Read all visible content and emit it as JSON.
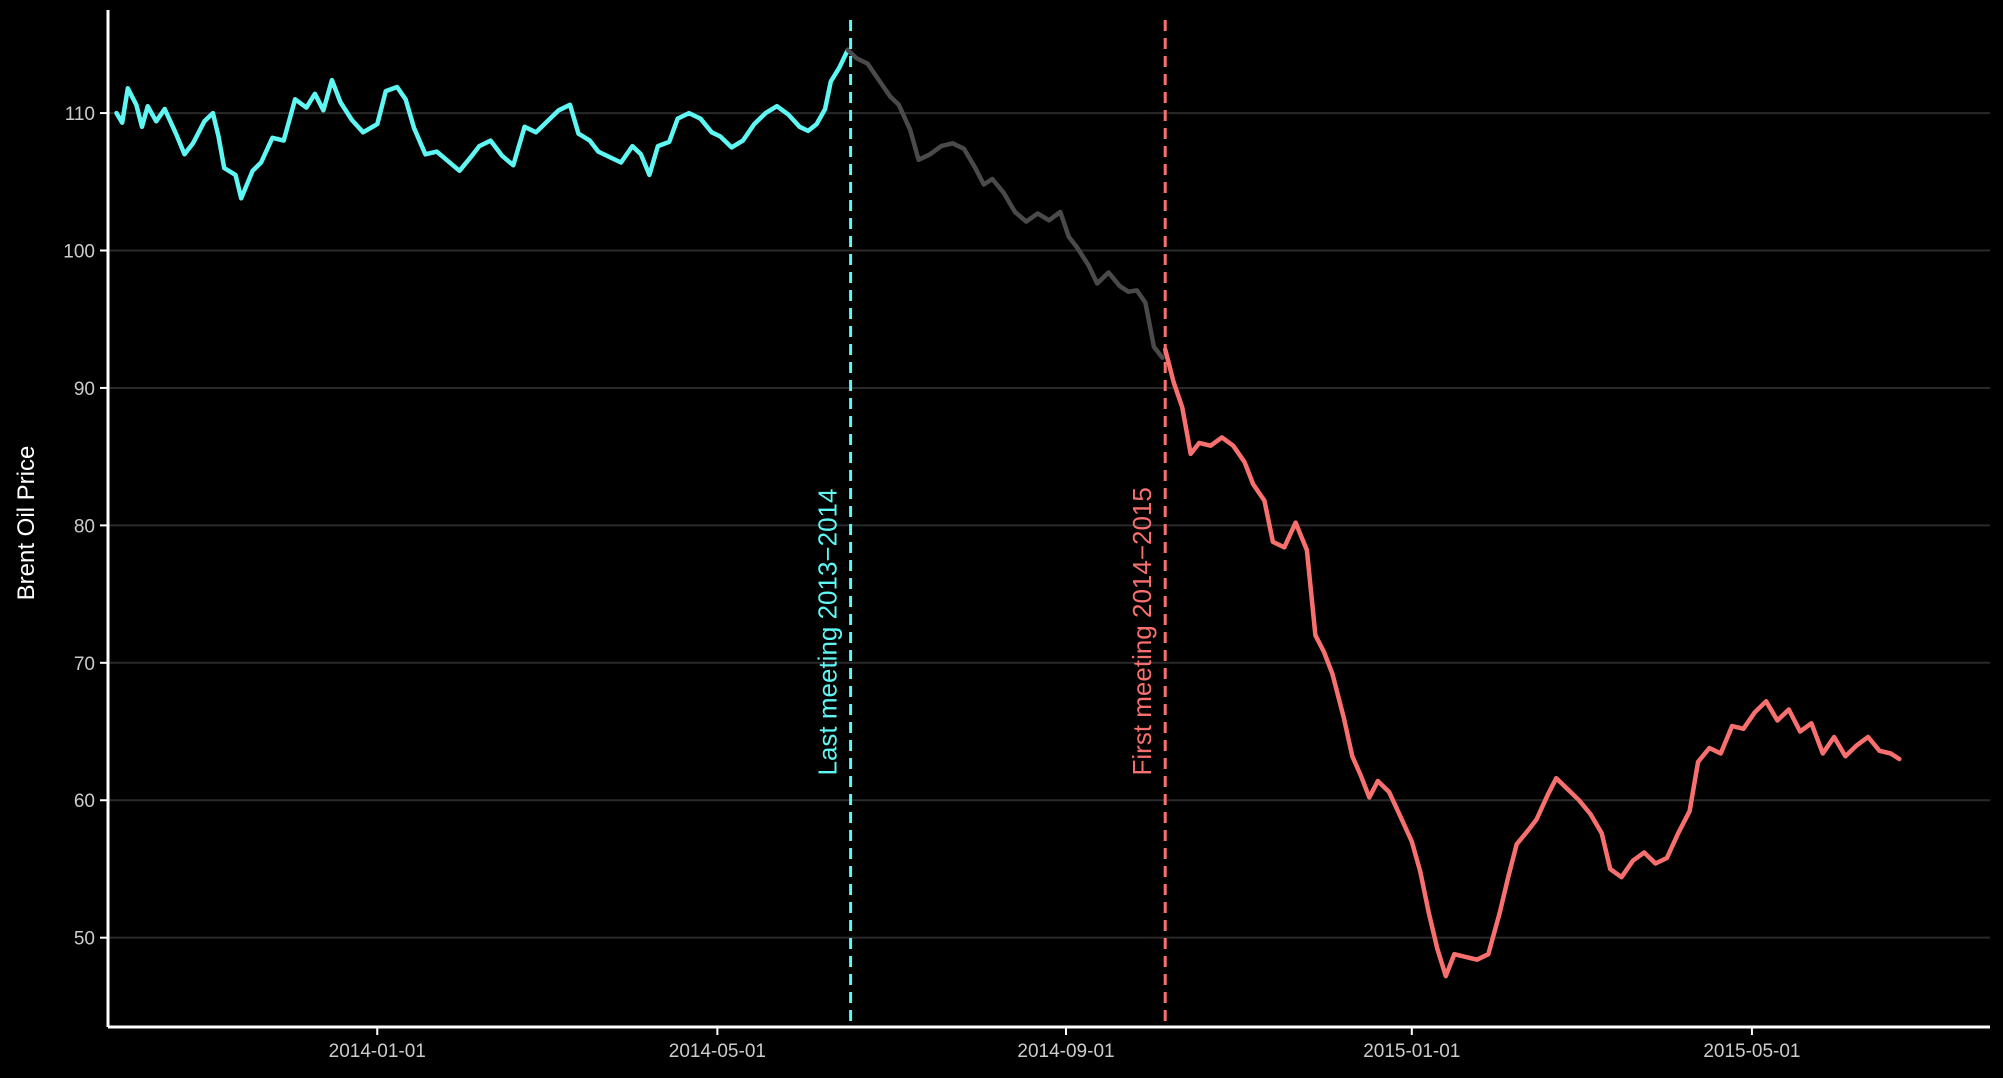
{
  "chart_data": {
    "type": "line",
    "title": "",
    "xlabel": "",
    "ylabel": "Brent Oil Price",
    "x_range": [
      "2013-09-28",
      "2015-07-24"
    ],
    "ylim": [
      43.5,
      117.5
    ],
    "grid": "horizontal",
    "legend": "none",
    "x_ticks": [
      "2014-01-01",
      "2014-05-01",
      "2014-09-01",
      "2015-01-01",
      "2015-05-01"
    ],
    "y_ticks": [
      50,
      60,
      70,
      80,
      90,
      100,
      110
    ],
    "x_tick_labels": [
      "2014-01-01",
      "2014-05-01",
      "2014-09-01",
      "2015-01-01",
      "2015-05-01"
    ],
    "y_tick_labels": [
      "50",
      "60",
      "70",
      "80",
      "90",
      "100",
      "110"
    ],
    "series": [
      {
        "color": "#5ef7f4",
        "points": [
          [
            "2013-10-01",
            110.0
          ],
          [
            "2013-10-03",
            109.3
          ],
          [
            "2013-10-05",
            111.8
          ],
          [
            "2013-10-08",
            110.6
          ],
          [
            "2013-10-10",
            109.0
          ],
          [
            "2013-10-12",
            110.5
          ],
          [
            "2013-10-15",
            109.4
          ],
          [
            "2013-10-18",
            110.3
          ],
          [
            "2013-10-22",
            108.5
          ],
          [
            "2013-10-25",
            107.0
          ],
          [
            "2013-10-28",
            107.8
          ],
          [
            "2013-11-01",
            109.4
          ],
          [
            "2013-11-04",
            110.0
          ],
          [
            "2013-11-06",
            108.3
          ],
          [
            "2013-11-08",
            106.0
          ],
          [
            "2013-11-12",
            105.5
          ],
          [
            "2013-11-14",
            103.8
          ],
          [
            "2013-11-18",
            105.8
          ],
          [
            "2013-11-21",
            106.4
          ],
          [
            "2013-11-25",
            108.2
          ],
          [
            "2013-11-29",
            108.0
          ],
          [
            "2013-12-03",
            111.0
          ],
          [
            "2013-12-07",
            110.4
          ],
          [
            "2013-12-10",
            111.4
          ],
          [
            "2013-12-13",
            110.2
          ],
          [
            "2013-12-16",
            112.4
          ],
          [
            "2013-12-19",
            110.8
          ],
          [
            "2013-12-23",
            109.5
          ],
          [
            "2013-12-27",
            108.6
          ],
          [
            "2014-01-01",
            109.2
          ],
          [
            "2014-01-04",
            111.6
          ],
          [
            "2014-01-08",
            111.9
          ],
          [
            "2014-01-11",
            111.0
          ],
          [
            "2014-01-14",
            108.9
          ],
          [
            "2014-01-18",
            107.0
          ],
          [
            "2014-01-22",
            107.2
          ],
          [
            "2014-01-26",
            106.5
          ],
          [
            "2014-01-30",
            105.8
          ],
          [
            "2014-02-03",
            106.8
          ],
          [
            "2014-02-06",
            107.6
          ],
          [
            "2014-02-10",
            108.0
          ],
          [
            "2014-02-14",
            106.9
          ],
          [
            "2014-02-18",
            106.2
          ],
          [
            "2014-02-22",
            109.0
          ],
          [
            "2014-02-26",
            108.6
          ],
          [
            "2014-03-02",
            109.4
          ],
          [
            "2014-03-06",
            110.2
          ],
          [
            "2014-03-10",
            110.6
          ],
          [
            "2014-03-13",
            108.5
          ],
          [
            "2014-03-17",
            108.0
          ],
          [
            "2014-03-20",
            107.2
          ],
          [
            "2014-03-24",
            106.8
          ],
          [
            "2014-03-28",
            106.4
          ],
          [
            "2014-04-01",
            107.6
          ],
          [
            "2014-04-04",
            107.0
          ],
          [
            "2014-04-07",
            105.5
          ],
          [
            "2014-04-10",
            107.6
          ],
          [
            "2014-04-14",
            107.9
          ],
          [
            "2014-04-17",
            109.6
          ],
          [
            "2014-04-21",
            110.0
          ],
          [
            "2014-04-25",
            109.6
          ],
          [
            "2014-04-29",
            108.6
          ],
          [
            "2014-05-02",
            108.3
          ],
          [
            "2014-05-06",
            107.5
          ],
          [
            "2014-05-10",
            108.0
          ],
          [
            "2014-05-14",
            109.2
          ],
          [
            "2014-05-18",
            110.0
          ],
          [
            "2014-05-22",
            110.5
          ],
          [
            "2014-05-26",
            109.9
          ],
          [
            "2014-05-30",
            109.0
          ],
          [
            "2014-06-02",
            108.7
          ],
          [
            "2014-06-05",
            109.2
          ],
          [
            "2014-06-08",
            110.3
          ],
          [
            "2014-06-10",
            112.3
          ],
          [
            "2014-06-13",
            113.3
          ],
          [
            "2014-06-16",
            114.6
          ]
        ]
      },
      {
        "color": "#4a4a4a",
        "points": [
          [
            "2014-06-16",
            114.6
          ],
          [
            "2014-06-19",
            114.0
          ],
          [
            "2014-06-23",
            113.6
          ],
          [
            "2014-06-27",
            112.4
          ],
          [
            "2014-07-01",
            111.2
          ],
          [
            "2014-07-04",
            110.6
          ],
          [
            "2014-07-08",
            108.8
          ],
          [
            "2014-07-11",
            106.6
          ],
          [
            "2014-07-15",
            107.0
          ],
          [
            "2014-07-19",
            107.6
          ],
          [
            "2014-07-23",
            107.8
          ],
          [
            "2014-07-27",
            107.4
          ],
          [
            "2014-07-31",
            106.0
          ],
          [
            "2014-08-03",
            104.8
          ],
          [
            "2014-08-06",
            105.2
          ],
          [
            "2014-08-10",
            104.2
          ],
          [
            "2014-08-14",
            102.8
          ],
          [
            "2014-08-18",
            102.1
          ],
          [
            "2014-08-22",
            102.7
          ],
          [
            "2014-08-26",
            102.2
          ],
          [
            "2014-08-30",
            102.8
          ],
          [
            "2014-09-02",
            101.0
          ],
          [
            "2014-09-05",
            100.2
          ],
          [
            "2014-09-09",
            98.9
          ],
          [
            "2014-09-12",
            97.6
          ],
          [
            "2014-09-16",
            98.4
          ],
          [
            "2014-09-20",
            97.4
          ],
          [
            "2014-09-23",
            97.0
          ],
          [
            "2014-09-26",
            97.1
          ],
          [
            "2014-09-29",
            96.2
          ],
          [
            "2014-10-02",
            93.0
          ],
          [
            "2014-10-05",
            92.2
          ]
        ]
      },
      {
        "color": "#f8706e",
        "points": [
          [
            "2014-10-06",
            92.8
          ],
          [
            "2014-10-09",
            90.4
          ],
          [
            "2014-10-12",
            88.6
          ],
          [
            "2014-10-15",
            85.2
          ],
          [
            "2014-10-18",
            86.0
          ],
          [
            "2014-10-22",
            85.8
          ],
          [
            "2014-10-26",
            86.4
          ],
          [
            "2014-10-30",
            85.8
          ],
          [
            "2014-11-03",
            84.6
          ],
          [
            "2014-11-06",
            83.0
          ],
          [
            "2014-11-10",
            81.8
          ],
          [
            "2014-11-13",
            78.8
          ],
          [
            "2014-11-17",
            78.4
          ],
          [
            "2014-11-21",
            80.2
          ],
          [
            "2014-11-25",
            78.2
          ],
          [
            "2014-11-28",
            72.0
          ],
          [
            "2014-12-01",
            70.8
          ],
          [
            "2014-12-04",
            69.2
          ],
          [
            "2014-12-08",
            66.0
          ],
          [
            "2014-12-11",
            63.2
          ],
          [
            "2014-12-14",
            61.8
          ],
          [
            "2014-12-17",
            60.2
          ],
          [
            "2014-12-20",
            61.4
          ],
          [
            "2014-12-24",
            60.6
          ],
          [
            "2014-12-28",
            58.8
          ],
          [
            "2015-01-01",
            57.0
          ],
          [
            "2015-01-04",
            54.8
          ],
          [
            "2015-01-07",
            51.8
          ],
          [
            "2015-01-10",
            49.2
          ],
          [
            "2015-01-13",
            47.2
          ],
          [
            "2015-01-16",
            48.8
          ],
          [
            "2015-01-20",
            48.6
          ],
          [
            "2015-01-24",
            48.4
          ],
          [
            "2015-01-28",
            48.8
          ],
          [
            "2015-02-01",
            51.8
          ],
          [
            "2015-02-04",
            54.4
          ],
          [
            "2015-02-07",
            56.8
          ],
          [
            "2015-02-11",
            57.8
          ],
          [
            "2015-02-14",
            58.6
          ],
          [
            "2015-02-18",
            60.4
          ],
          [
            "2015-02-21",
            61.6
          ],
          [
            "2015-02-25",
            60.8
          ],
          [
            "2015-03-01",
            60.0
          ],
          [
            "2015-03-05",
            59.0
          ],
          [
            "2015-03-09",
            57.6
          ],
          [
            "2015-03-12",
            55.0
          ],
          [
            "2015-03-16",
            54.4
          ],
          [
            "2015-03-20",
            55.6
          ],
          [
            "2015-03-24",
            56.2
          ],
          [
            "2015-03-28",
            55.4
          ],
          [
            "2015-04-01",
            55.8
          ],
          [
            "2015-04-05",
            57.6
          ],
          [
            "2015-04-09",
            59.2
          ],
          [
            "2015-04-12",
            62.8
          ],
          [
            "2015-04-16",
            63.8
          ],
          [
            "2015-04-20",
            63.4
          ],
          [
            "2015-04-24",
            65.4
          ],
          [
            "2015-04-28",
            65.2
          ],
          [
            "2015-05-02",
            66.4
          ],
          [
            "2015-05-06",
            67.2
          ],
          [
            "2015-05-10",
            65.8
          ],
          [
            "2015-05-14",
            66.6
          ],
          [
            "2015-05-18",
            65.0
          ],
          [
            "2015-05-22",
            65.6
          ],
          [
            "2015-05-26",
            63.4
          ],
          [
            "2015-05-30",
            64.6
          ],
          [
            "2015-06-03",
            63.2
          ],
          [
            "2015-06-07",
            64.0
          ],
          [
            "2015-06-11",
            64.6
          ],
          [
            "2015-06-15",
            63.6
          ],
          [
            "2015-06-19",
            63.4
          ],
          [
            "2015-06-22",
            63.0
          ]
        ]
      }
    ],
    "vlines": [
      {
        "x": "2014-06-17",
        "color": "#5ef7f4",
        "label": "Last meeting 2013−2014"
      },
      {
        "x": "2014-10-06",
        "color": "#f8706e",
        "label": "First meeting 2014−2015"
      }
    ]
  }
}
